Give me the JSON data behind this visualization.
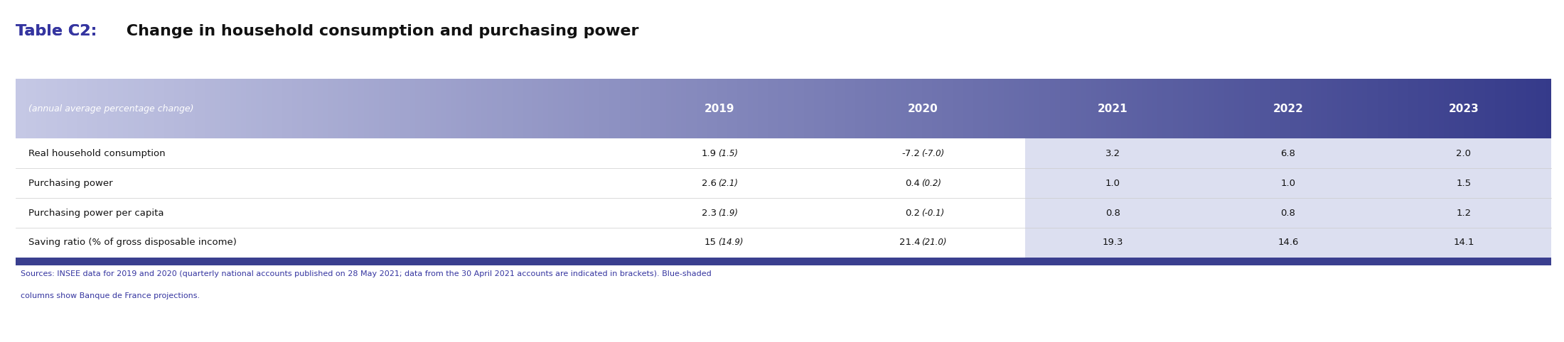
{
  "title_blue": "Table C2:",
  "title_black": " Change in household consumption and purchasing power",
  "title_fontsize": 16,
  "header_label": "(annual average percentage change)",
  "columns": [
    "2019",
    "2020",
    "2021",
    "2022",
    "2023"
  ],
  "rows": [
    {
      "label": "Real household consumption",
      "values": [
        "1.9 (1.5)",
        "-7.2 (-7.0)",
        "3.2",
        "6.8",
        "2.0"
      ]
    },
    {
      "label": "Purchasing power",
      "values": [
        "2.6 (2.1)",
        "0.4 (0.2)",
        "1.0",
        "1.0",
        "1.5"
      ]
    },
    {
      "label": "Purchasing power per capita",
      "values": [
        "2.3 (1.9)",
        "0.2 (-0.1)",
        "0.8",
        "0.8",
        "1.2"
      ]
    },
    {
      "label": "Saving ratio (% of gross disposable income)",
      "values": [
        "15 (14.9)",
        "21.4 (21.0)",
        "19.3",
        "14.6",
        "14.1"
      ]
    }
  ],
  "footnote_line1": "Sources: INSEE data for 2019 and 2020 (quarterly national accounts published on 28 May 2021; data from the 30 April 2021 accounts are indicated in brackets). Blue-shaded",
  "footnote_line2": "columns show Banque de France projections.",
  "header_bg_gradient_left": "#c5c8e5",
  "header_bg_gradient_right": "#353a8a",
  "header_text_color": "#ffffff",
  "row_bg_white": "#ffffff",
  "projection_col_bg": "#dcdff0",
  "title_blue_color": "#3535a0",
  "title_black_color": "#111111",
  "footnote_color": "#3535a0",
  "separator_color": "#3a3f8f",
  "row_label_color": "#111111",
  "row_value_color": "#111111"
}
